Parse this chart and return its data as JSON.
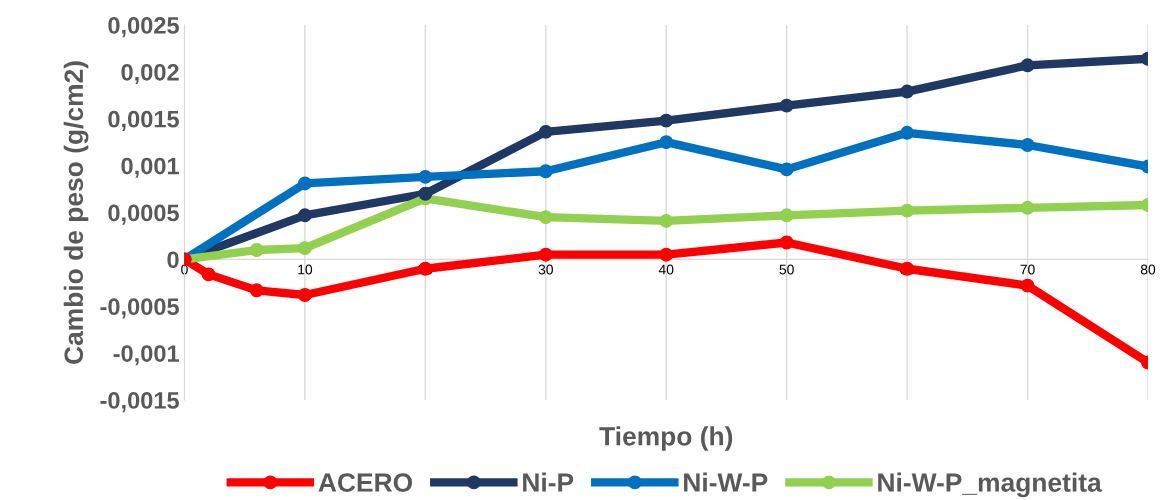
{
  "chart_data": {
    "type": "line",
    "xlabel": "Tiempo (h)",
    "ylabel": "Cambio de peso (g/cm2)",
    "xlim": [
      0,
      80
    ],
    "xticks": [
      0,
      10,
      20,
      30,
      40,
      50,
      60,
      70,
      80
    ],
    "ylim": [
      -0.0015,
      0.0025
    ],
    "yticks": [
      {
        "value": -0.0015,
        "label": "-0,0015"
      },
      {
        "value": -0.001,
        "label": "-0,001"
      },
      {
        "value": -0.0005,
        "label": "-0,0005"
      },
      {
        "value": 0,
        "label": "0"
      },
      {
        "value": 0.0005,
        "label": "0,0005"
      },
      {
        "value": 0.001,
        "label": "0,001"
      },
      {
        "value": 0.0015,
        "label": "0,0015"
      },
      {
        "value": 0.002,
        "label": "0,002"
      },
      {
        "value": 0.0025,
        "label": "0,0025"
      }
    ],
    "grid": "x",
    "legend": "bottom",
    "marker": "circle",
    "series": [
      {
        "name": "ACERO",
        "color": "#ff0000",
        "x": [
          0,
          2,
          6,
          10,
          20,
          30,
          40,
          50,
          60,
          70,
          80
        ],
        "values": [
          0,
          -0.00016,
          -0.00033,
          -0.00038,
          -0.0001,
          5e-05,
          5e-05,
          0.00018,
          -0.0001,
          -0.00028,
          -0.0011
        ]
      },
      {
        "name": "Ni-P",
        "color": "#203864",
        "x": [
          0,
          10,
          20,
          30,
          40,
          50,
          60,
          70,
          80
        ],
        "values": [
          0,
          0.00047,
          0.0007,
          0.00136,
          0.00148,
          0.00164,
          0.00179,
          0.00207,
          0.00214
        ]
      },
      {
        "name": "Ni-W-P",
        "color": "#0070c0",
        "x": [
          0,
          10,
          20,
          30,
          40,
          50,
          60,
          70,
          80
        ],
        "values": [
          0,
          0.00081,
          0.00088,
          0.00094,
          0.00125,
          0.00096,
          0.00135,
          0.00122,
          0.00099
        ]
      },
      {
        "name": "Ni-W-P_magnetita",
        "color": "#92d050",
        "x": [
          0,
          6,
          10,
          20,
          30,
          40,
          50,
          60,
          70,
          80
        ],
        "values": [
          0,
          0.0001,
          0.00012,
          0.00065,
          0.00045,
          0.00041,
          0.00047,
          0.00052,
          0.00055,
          0.00058
        ]
      }
    ]
  }
}
